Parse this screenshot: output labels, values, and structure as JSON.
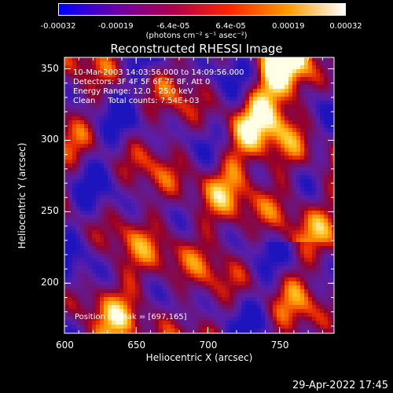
{
  "colorbar": {
    "ticks": [
      "-0.00032",
      "-0.00019",
      "-6.4e-05",
      "6.4e-05",
      "0.00019",
      "0.00032"
    ],
    "unit_label": "(photons cm⁻² s⁻¹ asec⁻²)",
    "colors": [
      "#0000ff",
      "#6a00aa",
      "#b0004a",
      "#ff2600",
      "#ff9a00",
      "#ffffff"
    ]
  },
  "annotations": {
    "line1": "10-Mar-2003 14:03:56.000 to 14:09:56.000",
    "line2": "Detectors: 3F 4F 5F 6F 7F 8F, Att 0",
    "line3": "Energy Range: 12.0 - 25.0 keV",
    "line4": "Clean     Total counts: 7.54E+03",
    "peak": "Position of Peak = [697,165]"
  },
  "timestamp": "29-Apr-2022 17:45",
  "chart_data": {
    "type": "heatmap",
    "title": "Reconstructed RHESSI Image",
    "xlabel": "Heliocentric X (arcsec)",
    "ylabel": "Heliocentric Y (arcsec)",
    "xlim": [
      600,
      788
    ],
    "ylim": [
      165,
      358
    ],
    "x_ticks": [
      600,
      650,
      700,
      750
    ],
    "y_ticks": [
      200,
      250,
      300,
      350
    ],
    "value_range": [
      -0.00032,
      0.00032
    ],
    "grid": false
  }
}
